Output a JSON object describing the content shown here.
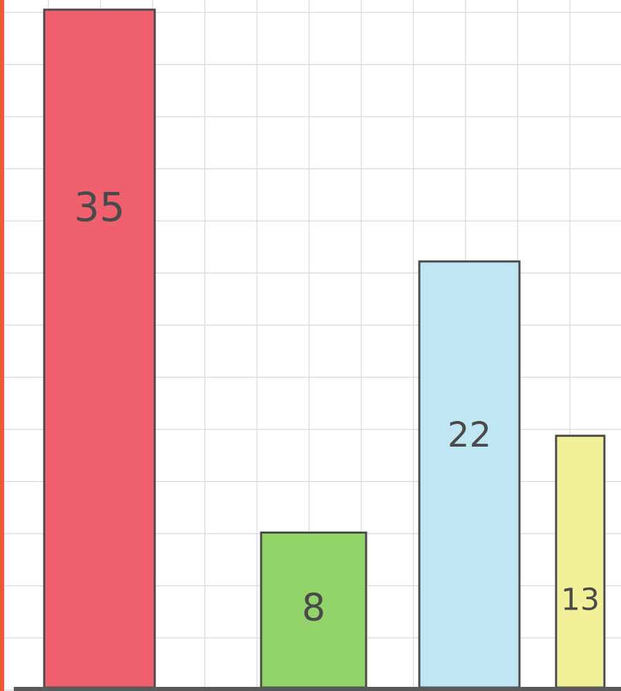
{
  "chart_data": {
    "type": "bar",
    "title": "",
    "xlabel": "",
    "ylabel": "",
    "ylim": [
      0,
      35
    ],
    "grid": true,
    "legend": "none",
    "values": [
      35,
      8,
      22,
      13
    ],
    "labels": [
      "35",
      "8",
      "22",
      "13"
    ],
    "colors": [
      "#f0606e",
      "#93d46a",
      "#bfe6f2",
      "#f3f09a"
    ]
  },
  "colors": {
    "grid": "#d7d7d7",
    "outline": "#4a4a4a",
    "left_border": "#ef5a36",
    "baseline": "#5a5a5a"
  }
}
